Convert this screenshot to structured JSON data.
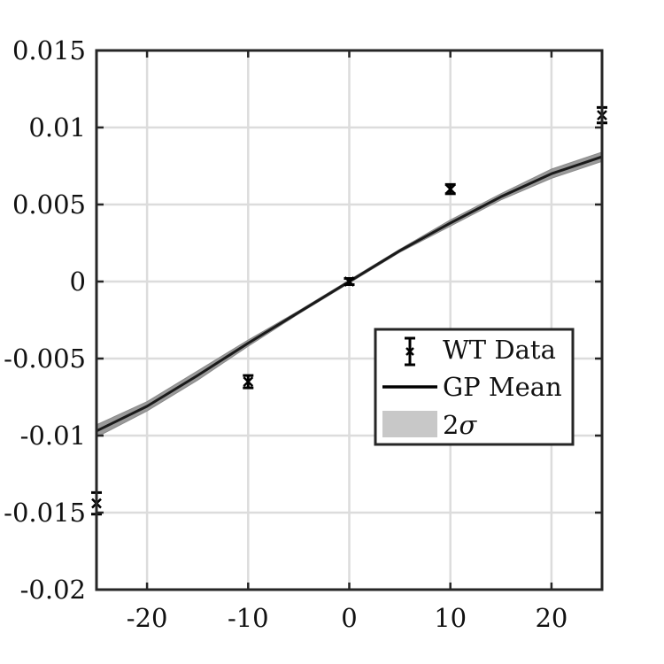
{
  "chart_data": {
    "type": "line",
    "title": "",
    "xlabel": "",
    "ylabel": "",
    "xlim": [
      -25,
      25
    ],
    "ylim": [
      -0.02,
      0.015
    ],
    "xticks": [
      -20,
      -10,
      0,
      10,
      20
    ],
    "xtick_labels": [
      "-20",
      "-10",
      "0",
      "10",
      "20"
    ],
    "yticks": [
      -0.02,
      -0.015,
      -0.01,
      -0.005,
      0,
      0.005,
      0.01,
      0.015
    ],
    "ytick_labels": [
      "-0.02",
      "-0.015",
      "-0.01",
      "-0.005",
      "0",
      "0.005",
      "0.01",
      "0.015"
    ],
    "grid": true,
    "legend_position": "center-right",
    "series": [
      {
        "name": "WT Data",
        "kind": "errorbar",
        "color": "#000000",
        "x": [
          -25,
          -10,
          0,
          10,
          25
        ],
        "y": [
          -0.0144,
          -0.0065,
          0.0,
          0.006,
          0.0108
        ],
        "err": [
          0.0007,
          0.0004,
          0.0002,
          0.0003,
          0.0005
        ]
      },
      {
        "name": "GP Mean",
        "kind": "line",
        "color": "#000000",
        "x": [
          -25,
          -20,
          -15,
          -10,
          -5,
          0,
          5,
          10,
          15,
          20,
          25
        ],
        "y": [
          -0.0097,
          -0.0081,
          -0.0061,
          -0.004,
          -0.002,
          0.0,
          0.002,
          0.0038,
          0.0055,
          0.007,
          0.0081
        ]
      },
      {
        "name": "2σ",
        "kind": "band",
        "color": "#c8c8c8",
        "x": [
          -25,
          -20,
          -15,
          -10,
          -5,
          0,
          5,
          10,
          15,
          20,
          25
        ],
        "halfwidth": [
          0.0004,
          0.0003,
          0.0003,
          0.0002,
          0.0001,
          0.0001,
          0.0001,
          0.0002,
          0.0002,
          0.0003,
          0.0003
        ]
      }
    ],
    "legend": {
      "entries": [
        {
          "label_main": "WT Data",
          "label_sym": ""
        },
        {
          "label_main": "GP Mean",
          "label_sym": ""
        },
        {
          "label_main": "2",
          "label_sym": "σ"
        }
      ]
    }
  }
}
